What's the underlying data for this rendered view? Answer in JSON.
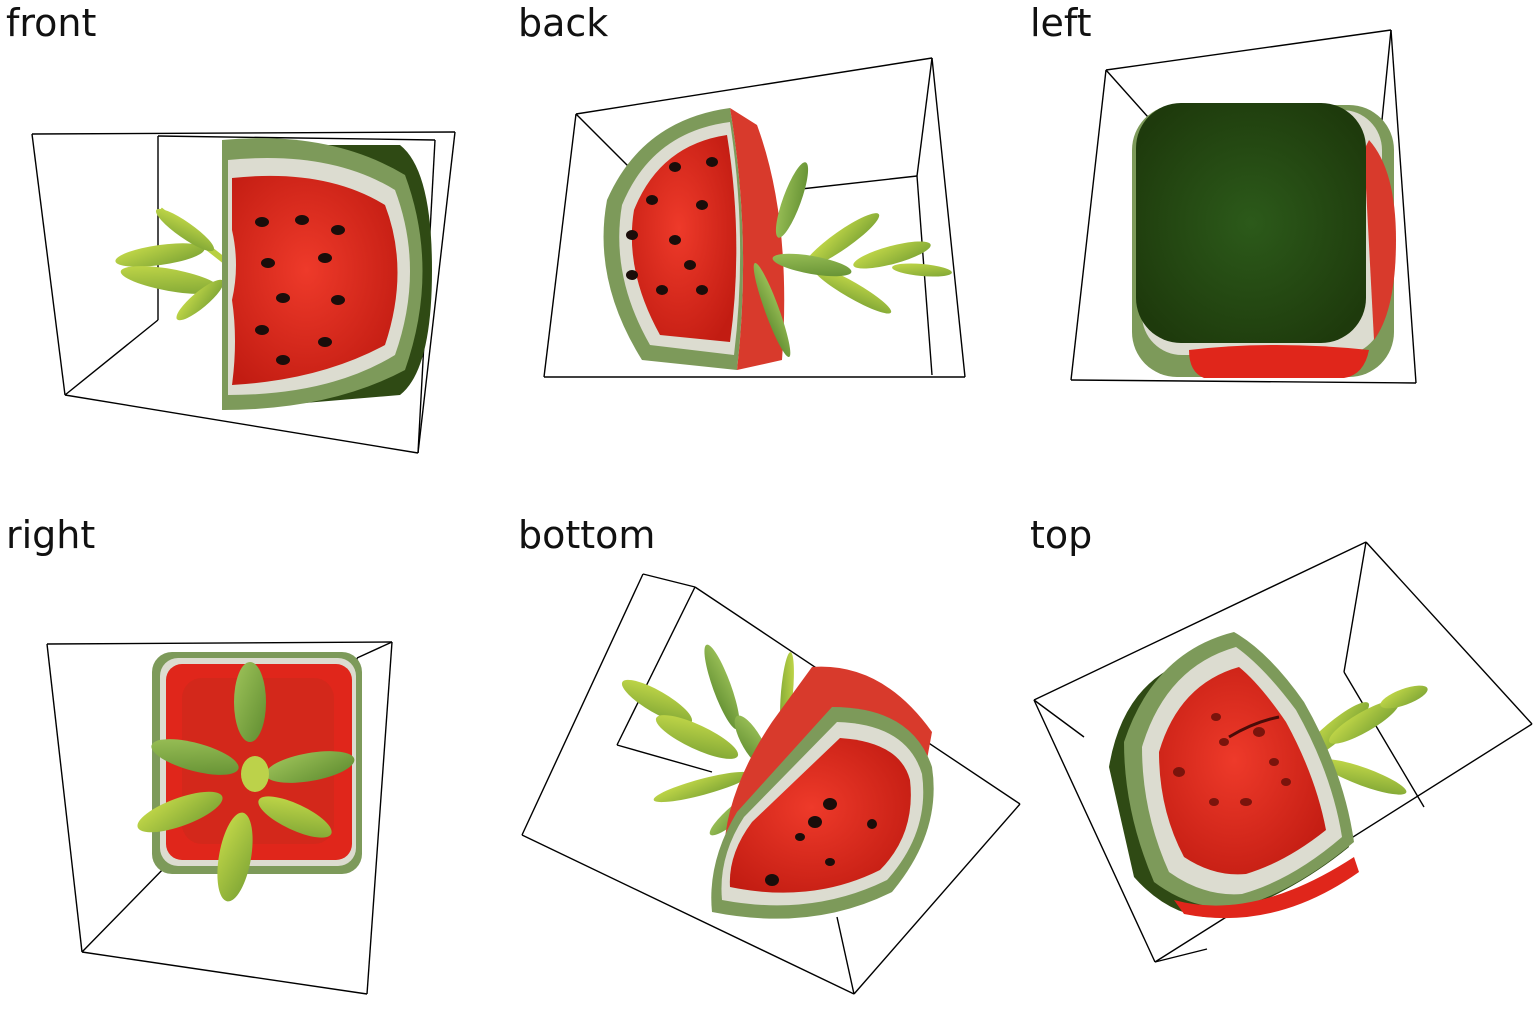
{
  "views": [
    {
      "id": "front",
      "label": "front"
    },
    {
      "id": "back",
      "label": "back"
    },
    {
      "id": "left",
      "label": "left"
    },
    {
      "id": "right",
      "label": "right"
    },
    {
      "id": "bottom",
      "label": "bottom"
    },
    {
      "id": "top",
      "label": "top"
    }
  ],
  "colors": {
    "flesh": "#e0261b",
    "flesh_dark": "#b81d12",
    "rind_white": "#dcdcd0",
    "rind_green": "#7d9a5a",
    "rind_dark": "#2f4a14",
    "seed": "#1a0d0a",
    "leaf": "#a9c83a",
    "leaf_dark": "#6f9a2e",
    "box_line": "#000000"
  },
  "icons": [
    "watermthough-slice-icon",
    "plant-sprout-icon"
  ]
}
